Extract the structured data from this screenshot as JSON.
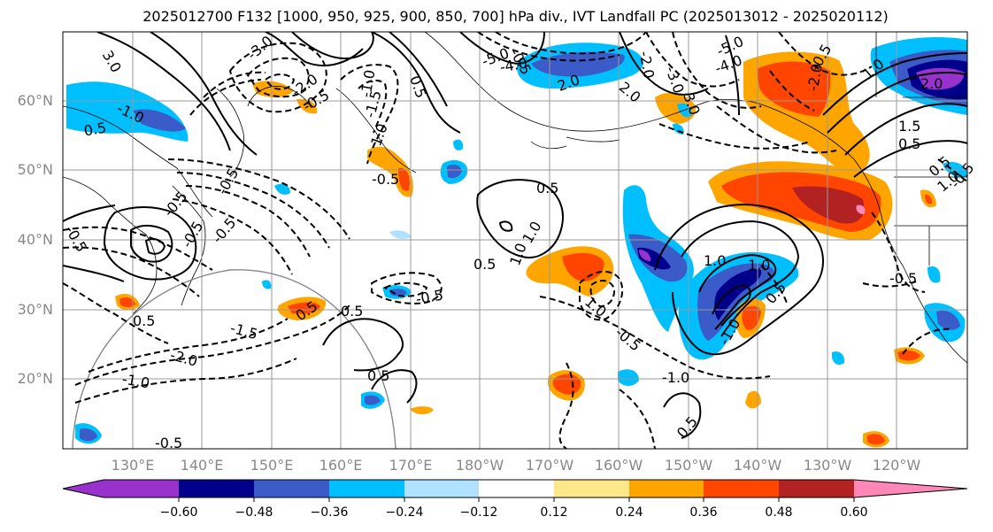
{
  "title": "2025012700 F132 [1000, 950, 925, 900, 850, 700] hPa div., IVT Landfall PC (2025013012 - 2025020112)",
  "lat_labels": [
    "60°N",
    "50°N",
    "40°N",
    "30°N",
    "20°N"
  ],
  "lon_labels": [
    "130°E",
    "140°E",
    "150°E",
    "160°E",
    "170°E",
    "180°W",
    "170°W",
    "160°W",
    "150°W",
    "140°W",
    "130°W",
    "120°W"
  ],
  "colorbar": {
    "ticks": [
      "−0.60",
      "−0.48",
      "−0.36",
      "−0.24",
      "−0.12",
      "0.12",
      "0.24",
      "0.36",
      "0.48",
      "0.60"
    ],
    "colors": [
      "#9932cc",
      "#00008b",
      "#3a5bc8",
      "#00bfff",
      "#b0e2ff",
      "#ffffff",
      "#ffe88a",
      "#ffa500",
      "#ff4500",
      "#b22222",
      "#ff88b8"
    ]
  },
  "contour_labels": [
    "3.0",
    "-3.0",
    "-2.0",
    "-0.5",
    "-1.0",
    "-1.5",
    "-0.5",
    "1.0",
    "-1.0",
    "0.5",
    "0.5",
    "-5.0",
    "-4.0",
    "2.0",
    "-2.0",
    "-5.0",
    "-4.0",
    "-3.0",
    "2.0",
    "3.0",
    "1.0",
    "2.0",
    "-2.0",
    "-0.5",
    "1.5",
    "0.5",
    "0.5",
    "1.0",
    "-0.5",
    "-0.5",
    "-0.5",
    "-0.5",
    "-0.5",
    "0.5",
    "0.5",
    "-1.5",
    "-2.0",
    "-1.0",
    "-0.5",
    "0.5",
    "-0.5",
    "0.5",
    "-0.5",
    "1.0",
    "-0.5",
    "1.0",
    "0.5",
    "1.0",
    "-1.0",
    "0.5",
    "-1.0",
    "1.0",
    "-0.5",
    "-0.5",
    "0.5",
    "1.0",
    "0.5"
  ]
}
